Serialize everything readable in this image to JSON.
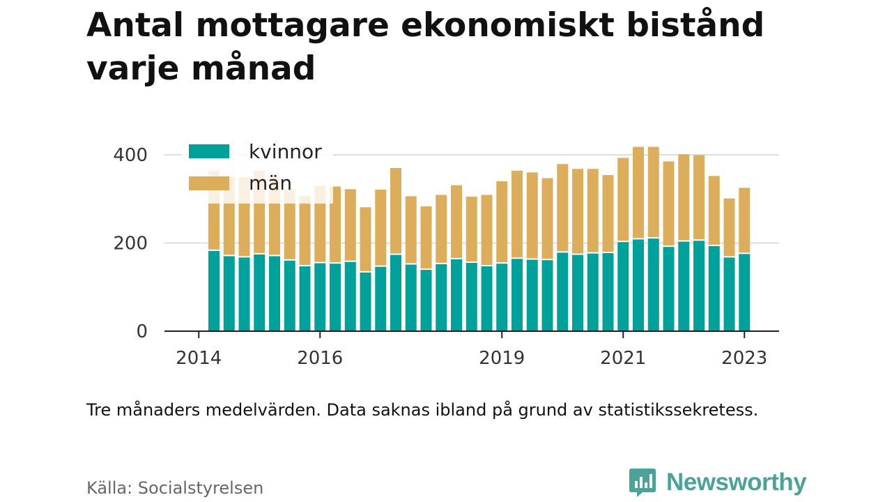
{
  "title": "Antal mottagare ekonomiskt bistånd varje månad",
  "note": "Tre månaders medelvärden. Data saknas ibland på grund av statistikssekretess.",
  "source": "Källa: Socialstyrelsen",
  "brand": "Newsworthy",
  "colors": {
    "kvinnor": "#00a19a",
    "man": "#dcae5c",
    "grid": "#dddddd",
    "axis": "#222222",
    "brand": "#4aa396"
  },
  "chart_data": {
    "type": "bar",
    "stacked": true,
    "x": [
      "2014-Q2",
      "2014-Q3",
      "2014-Q4",
      "2015-Q1",
      "2015-Q2",
      "2015-Q3",
      "2015-Q4",
      "2016-Q1",
      "2016-Q2",
      "2016-Q3",
      "2016-Q4",
      "2017-Q1",
      "2017-Q2",
      "2017-Q3",
      "2017-Q4",
      "2018-Q1",
      "2018-Q2",
      "2018-Q3",
      "2018-Q4",
      "2019-Q1",
      "2019-Q2",
      "2019-Q3",
      "2019-Q4",
      "2020-Q1",
      "2020-Q2",
      "2020-Q3",
      "2020-Q4",
      "2021-Q1",
      "2021-Q2",
      "2021-Q3",
      "2021-Q4",
      "2022-Q1",
      "2022-Q2",
      "2022-Q3",
      "2022-Q4",
      "2023-Q1"
    ],
    "x_ticks": [
      "2014",
      "2016",
      "2019",
      "2021",
      "2023"
    ],
    "y_ticks": [
      0,
      200,
      400
    ],
    "ylim": [
      0,
      420
    ],
    "grid": true,
    "legend_position": "top-left",
    "series": [
      {
        "name": "kvinnor",
        "values": [
          182,
          170,
          167,
          174,
          170,
          160,
          147,
          154,
          153,
          157,
          133,
          146,
          173,
          151,
          139,
          152,
          163,
          155,
          147,
          153,
          164,
          162,
          161,
          178,
          173,
          176,
          177,
          202,
          208,
          210,
          191,
          203,
          205,
          193,
          167,
          175
        ]
      },
      {
        "name": "män",
        "values": [
          182,
          180,
          182,
          190,
          180,
          162,
          160,
          176,
          175,
          165,
          148,
          175,
          197,
          155,
          144,
          157,
          168,
          150,
          162,
          187,
          200,
          198,
          186,
          201,
          195,
          192,
          177,
          191,
          210,
          208,
          194,
          198,
          194,
          159,
          134,
          150
        ]
      }
    ],
    "xlabel": "",
    "ylabel": ""
  }
}
